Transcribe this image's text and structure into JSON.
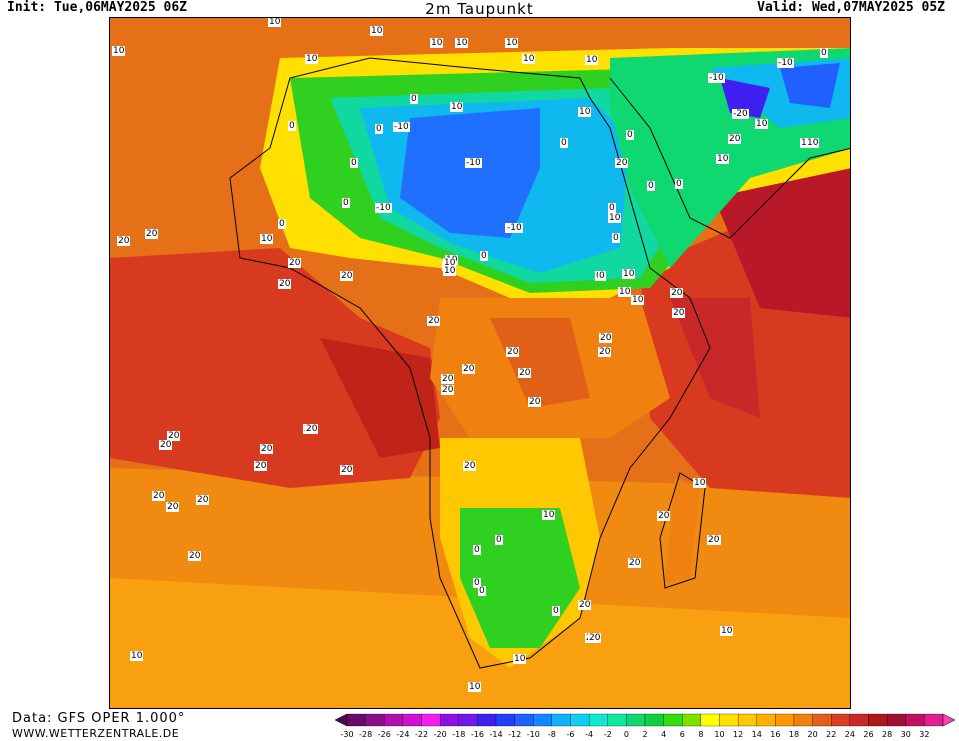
{
  "header": {
    "init": "Init: Tue,06MAY2025 06Z",
    "title": "2m Taupunkt",
    "valid": "Valid: Wed,07MAY2025 05Z"
  },
  "footer": {
    "data_source": "Data: GFS OPER 1.000°",
    "website": "WWW.WETTERZENTRALE.DE"
  },
  "colorbar": {
    "ticks": [
      "-30",
      "-28",
      "-26",
      "-24",
      "-22",
      "-20",
      "-18",
      "-16",
      "-14",
      "-12",
      "-10",
      "-8",
      "-6",
      "-4",
      "-2",
      "0",
      "2",
      "4",
      "6",
      "8",
      "10",
      "12",
      "14",
      "16",
      "18",
      "20",
      "22",
      "24",
      "26",
      "28",
      "30",
      "32"
    ],
    "colors": [
      "#4a0a4a",
      "#6a0a6a",
      "#8a108a",
      "#b010b0",
      "#d010d0",
      "#f020f0",
      "#9010e0",
      "#7018e8",
      "#4020f0",
      "#2040f8",
      "#2060ff",
      "#1088ff",
      "#10b0ff",
      "#10d0f0",
      "#10e8d0",
      "#10e8a0",
      "#10d870",
      "#10d040",
      "#30e010",
      "#80e000",
      "#ffff00",
      "#ffe000",
      "#ffc800",
      "#ffb000",
      "#ff9800",
      "#f08010",
      "#e06018",
      "#d84020",
      "#c82828",
      "#b01818",
      "#a01030",
      "#c01060",
      "#e02090",
      "#ff40b0"
    ]
  },
  "contour_labels": [
    "10",
    "10",
    "10",
    "10",
    "10",
    "10",
    "10",
    "10",
    "0",
    "0",
    "0",
    "10",
    "10",
    "-10",
    "0",
    "0",
    "10",
    "-10",
    "-10",
    "-20",
    "10",
    "20",
    "10",
    "20",
    "0",
    "-10",
    "0",
    "0",
    "10",
    "0",
    "0",
    "0",
    "10",
    "20",
    "20",
    "20",
    "-10",
    "0",
    "0",
    "20",
    "0",
    "20",
    "0",
    "10",
    "10",
    "10",
    "-10",
    "0",
    "10",
    "0",
    "10",
    "20",
    "20",
    "20",
    "10",
    "20",
    "20",
    "10",
    "10",
    "10",
    "20",
    "20",
    "20",
    "20",
    "20",
    "20",
    "20",
    "20",
    "20",
    "20",
    "20",
    "20",
    "20",
    "20",
    "20",
    "20",
    "20",
    "20",
    "20",
    "20",
    "10",
    "20",
    "20",
    "10",
    "0",
    "0",
    "0",
    "0",
    "20",
    "20",
    "20",
    "0",
    "10",
    "10",
    "10",
    "10"
  ]
}
